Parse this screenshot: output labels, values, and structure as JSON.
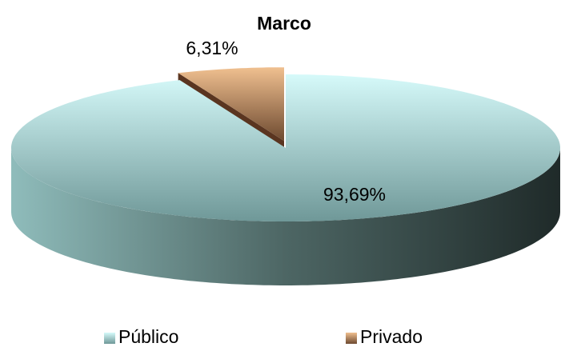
{
  "chart_data": {
    "type": "pie3d",
    "title": "Marco",
    "categories": [
      "Público",
      "Privado"
    ],
    "values": [
      93.69,
      6.31
    ],
    "value_labels": [
      "93,69%",
      "6,31%"
    ],
    "colors": [
      "#a8dede",
      "#d9a070"
    ],
    "legend": "bottom"
  }
}
